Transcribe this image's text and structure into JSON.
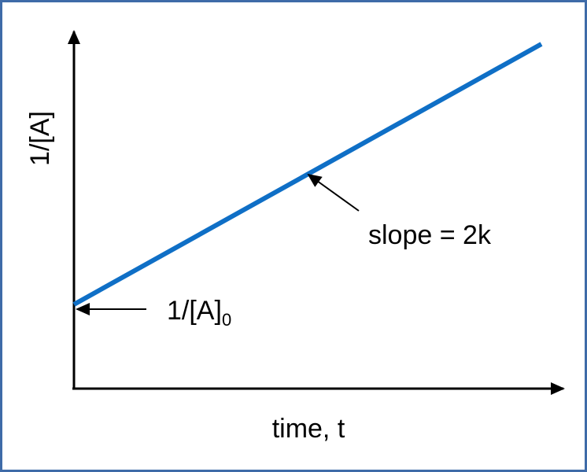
{
  "diagram": {
    "y_axis_label": "1/[A]",
    "x_axis_label": "time, t",
    "slope_annotation": "slope = 2k",
    "intercept_annotation": {
      "main": "1/[A]",
      "subscript": "0"
    }
  },
  "colors": {
    "line": "#0f6fc6",
    "axes": "#000000",
    "frame_border": "#3f6ba8"
  }
}
